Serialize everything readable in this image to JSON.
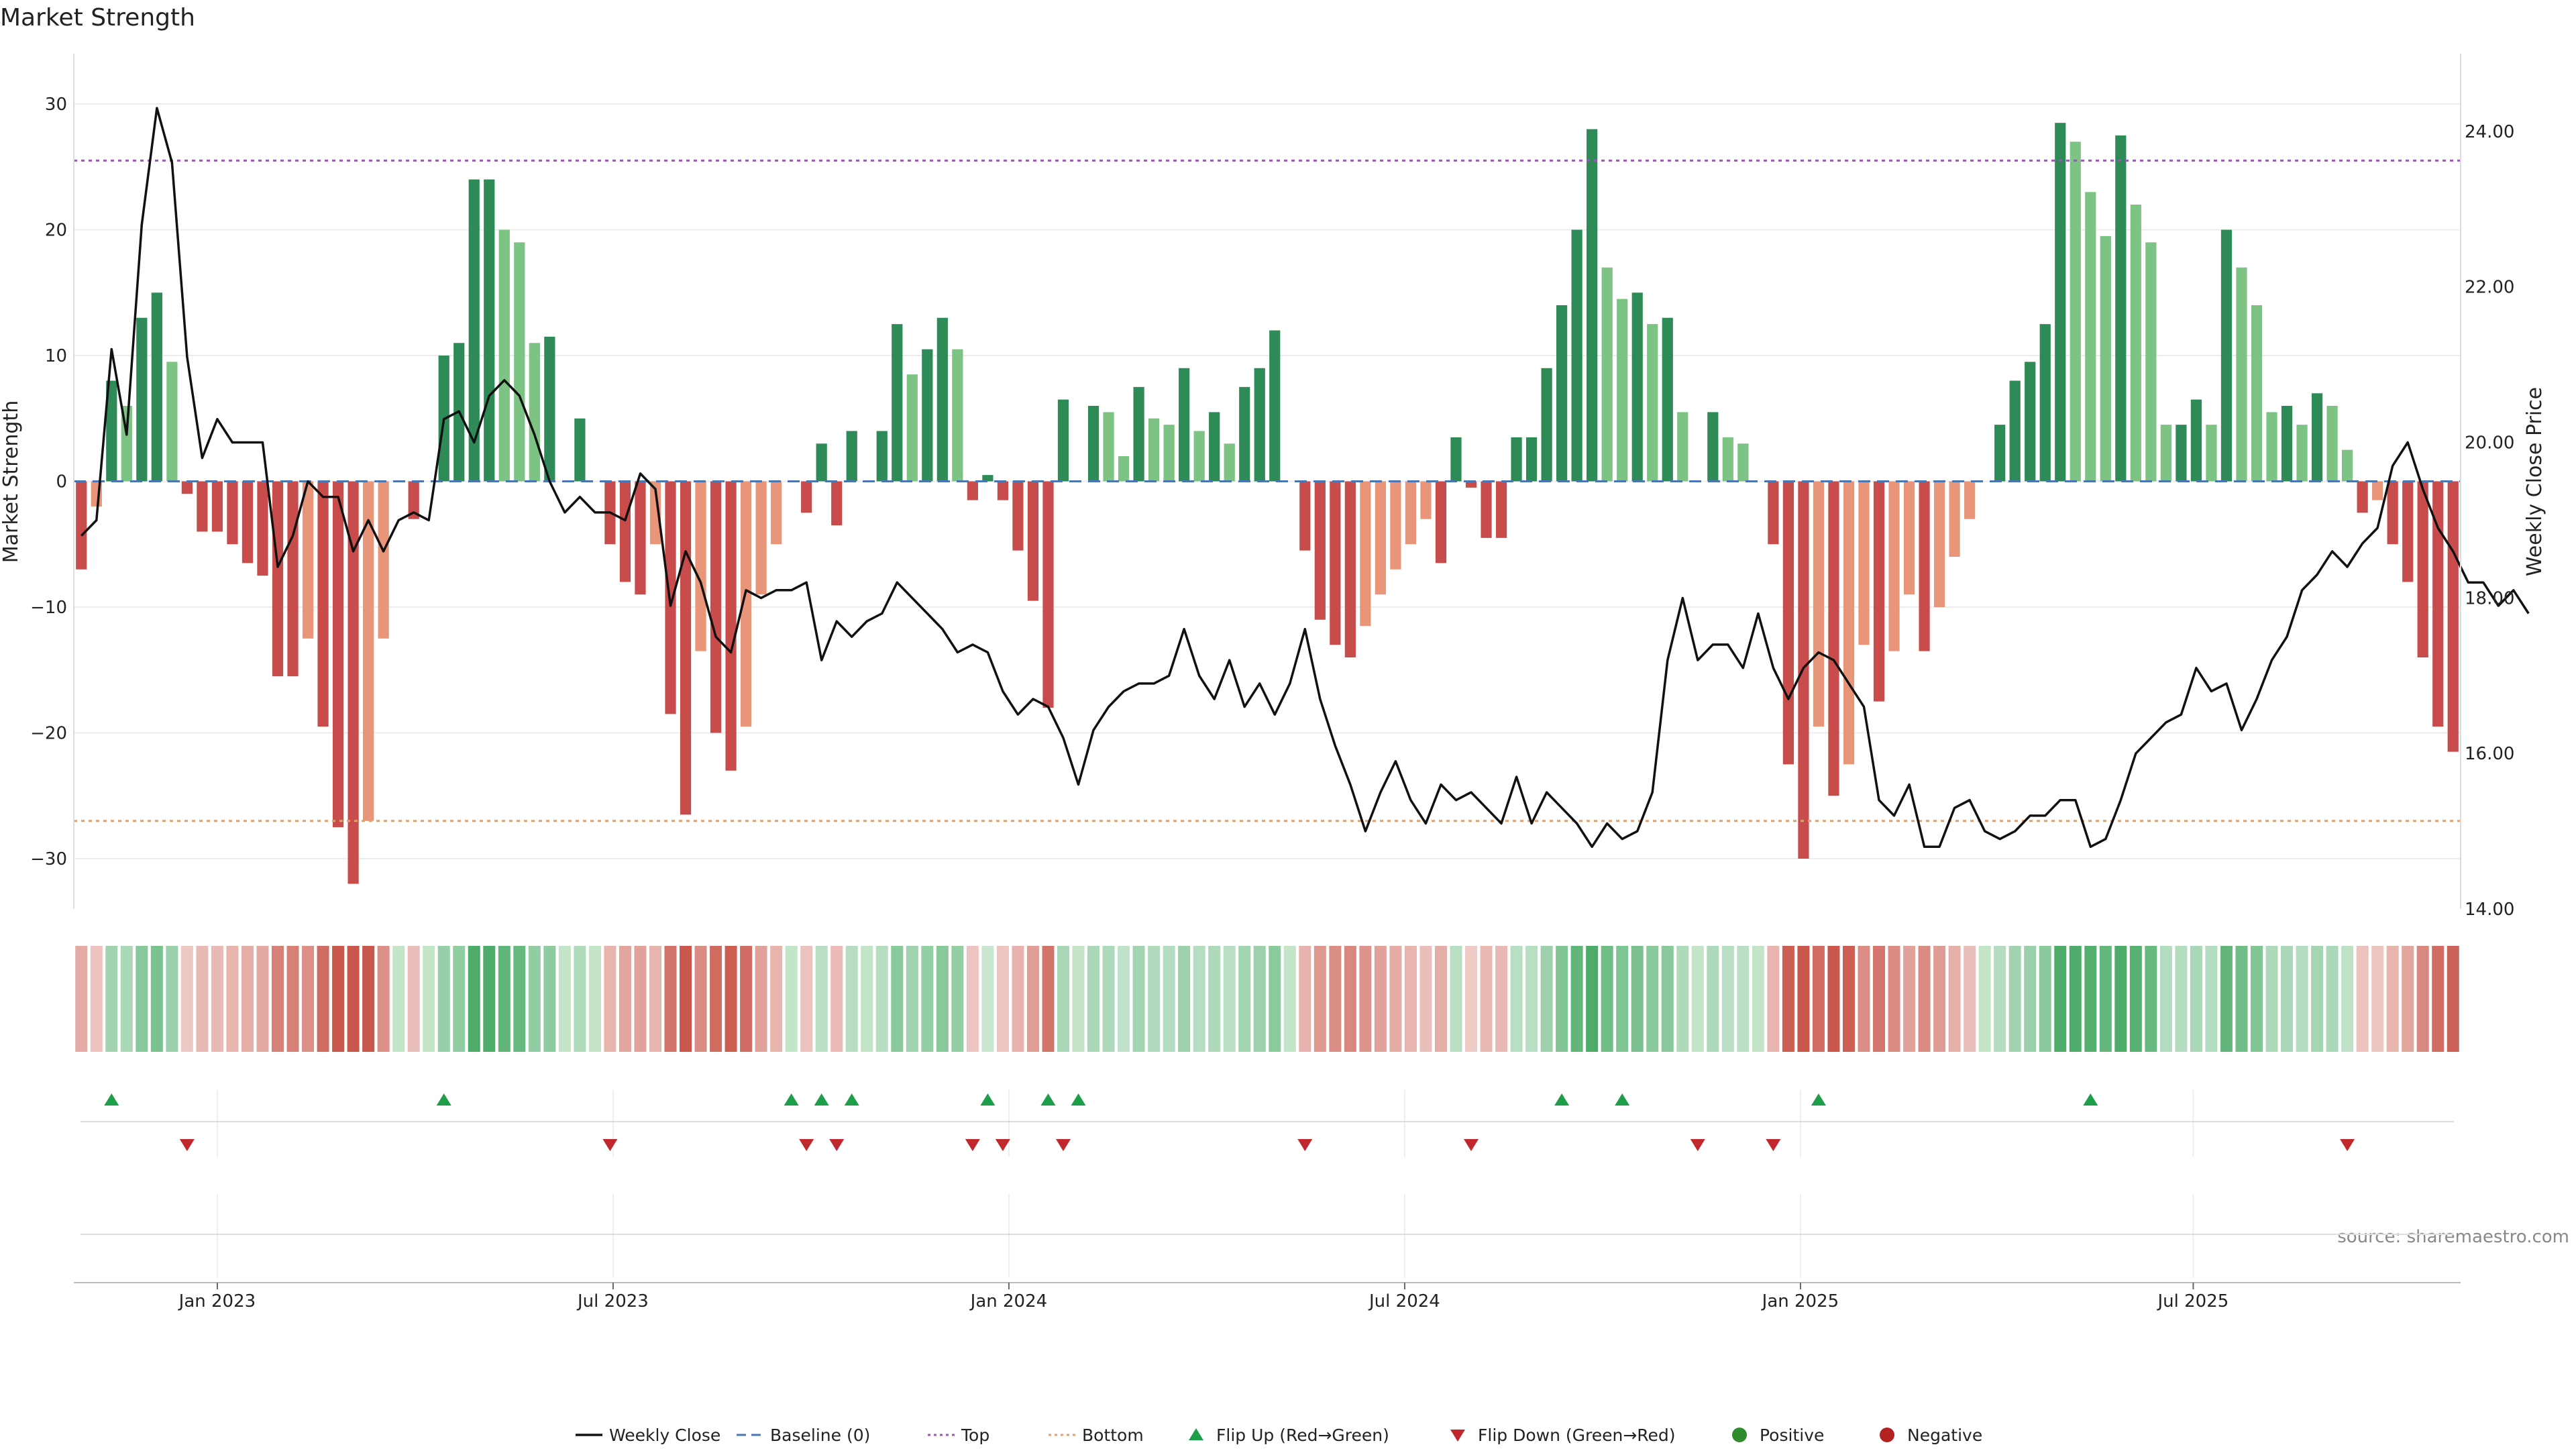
{
  "colors": {
    "neg_dark": "#c94c4c",
    "neg_light": "#e8957a",
    "pos_dark": "#2e8b57",
    "pos_light": "#7dc383",
    "line": "#111111",
    "baseline": "#4a77b4",
    "top": "#9b59b6",
    "bottom": "#e0a070",
    "flip_up": "#1e9e4a",
    "flip_down": "#c0282d"
  },
  "source_text": "source: sharemaestro.com",
  "chart_data": {
    "type": "bar",
    "title": "Market Strength",
    "ylabel": "Market Strength",
    "y2label": "Weekly Close Price",
    "ylim": [
      -34,
      34
    ],
    "y2lim": [
      14.0,
      25.0
    ],
    "yticks": [
      30,
      20,
      10,
      0,
      -10,
      -20,
      -30
    ],
    "yticklabels": [
      "30",
      "20",
      "10",
      "0",
      "−10",
      "−20",
      "−30"
    ],
    "y2ticks": [
      24,
      22,
      20,
      18,
      16,
      14
    ],
    "y2ticklabels": [
      "24.00",
      "22.00",
      "20.00",
      "18.00",
      "16.00",
      "14.00"
    ],
    "top_line": 25.5,
    "bottom_line": -27,
    "start_date": "2022-10-31",
    "xticks": [
      {
        "label": "Jan 2023",
        "index": 9
      },
      {
        "label": "Jul 2023",
        "index": 35.2
      },
      {
        "label": "Jan 2024",
        "index": 61.4
      },
      {
        "label": "Jul 2024",
        "index": 87.6
      },
      {
        "label": "Jan 2025",
        "index": 113.8
      },
      {
        "label": "Jul 2025",
        "index": 139.8
      }
    ],
    "series": [
      {
        "name": "Market Strength",
        "values": [
          -7,
          -2,
          8,
          6,
          13,
          15,
          9.5,
          -1,
          -4,
          -4,
          -5,
          -6.5,
          -7.5,
          -15.5,
          -15.5,
          -12.5,
          -19.5,
          -27.5,
          -32,
          -27,
          -12.5,
          0,
          -3,
          0,
          10,
          11,
          24,
          24,
          20,
          19,
          11,
          11.5,
          0,
          5,
          0,
          -5,
          -8,
          -9,
          -5,
          -18.5,
          -26.5,
          -13.5,
          -20,
          -23,
          -19.5,
          -9,
          -5,
          0,
          -2.5,
          3,
          -3.5,
          4,
          0,
          4,
          12.5,
          8.5,
          10.5,
          13,
          10.5,
          -1.5,
          0.5,
          -1.5,
          -5.5,
          -9.5,
          -18,
          6.5,
          0,
          6,
          5.5,
          2,
          7.5,
          5,
          4.5,
          9,
          4,
          5.5,
          3,
          7.5,
          9,
          12,
          0,
          -5.5,
          -11,
          -13,
          -14,
          -11.5,
          -9,
          -7,
          -5,
          -3,
          -6.5,
          3.5,
          -0.5,
          -4.5,
          -4.5,
          3.5,
          3.5,
          9,
          14,
          20,
          28,
          17,
          14.5,
          15,
          12.5,
          13,
          5.5,
          0,
          5.5,
          3.5,
          3,
          0,
          -5,
          -22.5,
          -30,
          -19.5,
          -25,
          -22.5,
          -13,
          -17.5,
          -13.5,
          -9,
          -13.5,
          -10,
          -6,
          -3,
          0,
          4.5,
          8,
          9.5,
          12.5,
          28.5,
          27,
          23,
          19.5,
          27.5,
          22,
          19,
          4.5,
          4.5,
          6.5,
          4.5,
          20,
          17,
          14,
          5.5,
          6,
          4.5,
          7,
          6,
          2.5,
          -2.5,
          -1.5,
          -5,
          -8,
          -14,
          -19.5,
          -21.5
        ]
      },
      {
        "name": "Weekly Close",
        "values": [
          18.8,
          19,
          21.2,
          20.1,
          22.8,
          24.3,
          23.6,
          21.1,
          19.8,
          20.3,
          20,
          20,
          20,
          18.4,
          18.8,
          19.5,
          19.3,
          19.3,
          18.6,
          19,
          18.6,
          19,
          19.1,
          19,
          20.3,
          20.4,
          20,
          20.6,
          20.8,
          20.6,
          20.1,
          19.5,
          19.1,
          19.3,
          19.1,
          19.1,
          19,
          19.6,
          19.4,
          17.9,
          18.6,
          18.2,
          17.5,
          17.3,
          18.1,
          18,
          18.1,
          18.1,
          18.2,
          17.2,
          17.7,
          17.5,
          17.7,
          17.8,
          18.2,
          18,
          17.8,
          17.6,
          17.3,
          17.4,
          17.3,
          16.8,
          16.5,
          16.7,
          16.6,
          16.2,
          15.6,
          16.3,
          16.6,
          16.8,
          16.9,
          16.9,
          17,
          17.6,
          17,
          16.7,
          17.2,
          16.6,
          16.9,
          16.5,
          16.9,
          17.6,
          16.7,
          16.1,
          15.6,
          15,
          15.5,
          15.9,
          15.4,
          15.1,
          15.6,
          15.4,
          15.5,
          15.3,
          15.1,
          15.7,
          15.1,
          15.5,
          15.3,
          15.1,
          14.8,
          15.1,
          14.9,
          15,
          15.5,
          17.2,
          18,
          17.2,
          17.4,
          17.4,
          17.1,
          17.8,
          17.1,
          16.7,
          17.1,
          17.3,
          17.2,
          16.9,
          16.6,
          15.4,
          15.2,
          15.6,
          14.8,
          14.8,
          15.3,
          15.4,
          15,
          14.9,
          15,
          15.2,
          15.2,
          15.4,
          15.4,
          14.8,
          14.9,
          15.4,
          16,
          16.2,
          16.4,
          16.5,
          17.1,
          16.8,
          16.9,
          16.3,
          16.7,
          17.2,
          17.5,
          18.1,
          18.3,
          18.6,
          18.4,
          18.7,
          18.9,
          19.7,
          20,
          19.4,
          18.9,
          18.6,
          18.2,
          18.2,
          17.9,
          18.1,
          17.8
        ]
      }
    ],
    "flip_up_indices": [
      2,
      24,
      47,
      49,
      51,
      60,
      64,
      66,
      98,
      102,
      115,
      133
    ],
    "flip_down_indices": [
      7,
      35,
      48,
      50,
      59,
      61,
      65,
      81,
      92,
      107,
      112,
      150
    ],
    "legend": [
      {
        "key": "weekly_close",
        "label": "Weekly Close"
      },
      {
        "key": "baseline",
        "label": "Baseline (0)"
      },
      {
        "key": "top",
        "label": "Top"
      },
      {
        "key": "bottom",
        "label": "Bottom"
      },
      {
        "key": "flip_up",
        "label": "Flip Up (Red→Green)"
      },
      {
        "key": "flip_down",
        "label": "Flip Down (Green→Red)"
      },
      {
        "key": "positive",
        "label": "Positive"
      },
      {
        "key": "negative",
        "label": "Negative"
      }
    ]
  }
}
